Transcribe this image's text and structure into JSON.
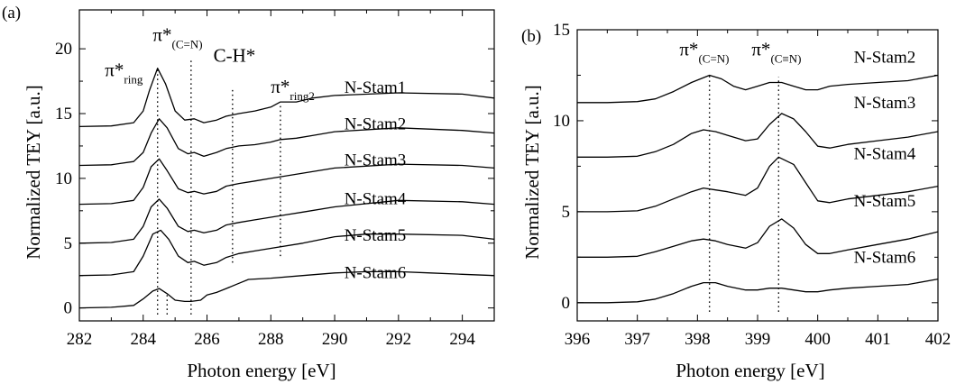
{
  "chart_data": [
    {
      "panel": "(a)",
      "type": "line",
      "title": "",
      "xlabel": "Photon energy [eV]",
      "ylabel": "Normalized TEY [a.u.]",
      "xlim": [
        282,
        295
      ],
      "ylim": [
        -1,
        23
      ],
      "xticks": [
        282,
        284,
        286,
        288,
        290,
        292,
        294
      ],
      "yticks": [
        0,
        5,
        10,
        15,
        20
      ],
      "legend": "none",
      "grid": false,
      "series": [
        {
          "name": "N-Stam1",
          "label_at": [
            290.3,
            16.6
          ],
          "x": [
            282,
            283,
            283.7,
            284.0,
            284.2,
            284.45,
            284.7,
            285.0,
            285.3,
            285.6,
            285.9,
            286.3,
            286.6,
            287.0,
            287.5,
            288.0,
            288.3,
            288.8,
            289.3,
            290,
            292,
            294,
            295
          ],
          "y": [
            14.0,
            14.05,
            14.3,
            15.2,
            16.8,
            18.5,
            17.3,
            15.2,
            14.5,
            14.6,
            14.3,
            14.5,
            14.8,
            15.0,
            15.2,
            15.5,
            15.9,
            15.9,
            16.2,
            16.4,
            16.6,
            16.5,
            16.2
          ]
        },
        {
          "name": "N-Stam2",
          "label_at": [
            290.3,
            13.8
          ],
          "x": [
            282,
            283,
            283.7,
            284.0,
            284.25,
            284.5,
            284.75,
            285.1,
            285.4,
            285.6,
            285.9,
            286.3,
            286.6,
            287.0,
            287.5,
            288.0,
            288.3,
            288.8,
            289.3,
            290,
            292,
            294,
            295
          ],
          "y": [
            11.0,
            11.05,
            11.3,
            12.0,
            13.5,
            14.6,
            13.9,
            12.3,
            11.9,
            12.0,
            11.7,
            12.0,
            12.3,
            12.5,
            12.6,
            12.8,
            13.0,
            13.1,
            13.3,
            13.6,
            13.9,
            13.7,
            13.5
          ]
        },
        {
          "name": "N-Stam3",
          "label_at": [
            290.3,
            11.0
          ],
          "x": [
            282,
            283,
            283.7,
            284.0,
            284.25,
            284.5,
            284.75,
            285.1,
            285.4,
            285.6,
            285.9,
            286.3,
            286.6,
            287.0,
            287.5,
            288.0,
            288.5,
            289.0,
            290,
            292,
            294,
            295
          ],
          "y": [
            8.0,
            8.05,
            8.3,
            9.3,
            10.9,
            11.5,
            10.6,
            9.2,
            8.9,
            9.0,
            8.8,
            9.0,
            9.4,
            9.6,
            9.8,
            10.0,
            10.2,
            10.4,
            10.8,
            11.1,
            11.0,
            10.8
          ]
        },
        {
          "name": "N-Stam4",
          "label_at": [
            290.3,
            8.0
          ],
          "x": [
            282,
            283,
            283.7,
            284.0,
            284.25,
            284.5,
            284.75,
            285.1,
            285.4,
            285.6,
            285.9,
            286.3,
            286.6,
            287.0,
            287.5,
            288.0,
            288.5,
            289.0,
            290,
            292,
            294,
            295
          ],
          "y": [
            5.0,
            5.05,
            5.3,
            6.3,
            7.8,
            8.4,
            7.7,
            6.3,
            5.9,
            6.0,
            5.8,
            6.0,
            6.4,
            6.6,
            6.8,
            7.0,
            7.2,
            7.4,
            7.8,
            8.3,
            8.2,
            8.0
          ]
        },
        {
          "name": "N-Stam5",
          "label_at": [
            290.3,
            5.2
          ],
          "x": [
            282,
            283,
            283.7,
            284.0,
            284.3,
            284.55,
            284.8,
            285.1,
            285.4,
            285.6,
            285.9,
            286.3,
            286.6,
            287.0,
            287.5,
            288.0,
            289.0,
            290,
            291,
            292,
            294,
            295
          ],
          "y": [
            2.5,
            2.55,
            2.8,
            4.0,
            5.7,
            6.0,
            5.3,
            4.0,
            3.5,
            3.6,
            3.3,
            3.5,
            3.9,
            4.2,
            4.4,
            4.6,
            5.0,
            5.5,
            5.7,
            5.7,
            5.6,
            5.3
          ]
        },
        {
          "name": "N-Stam6",
          "label_at": [
            290.3,
            2.3
          ],
          "x": [
            282,
            283,
            283.7,
            284.0,
            284.3,
            284.5,
            284.75,
            285.0,
            285.3,
            285.5,
            285.8,
            286.0,
            286.3,
            286.6,
            287.0,
            287.3,
            288.0,
            289.0,
            290,
            291,
            292,
            293,
            294,
            295
          ],
          "y": [
            0.0,
            0.05,
            0.2,
            0.7,
            1.3,
            1.5,
            1.1,
            0.6,
            0.5,
            0.5,
            0.6,
            1.0,
            1.2,
            1.5,
            1.9,
            2.2,
            2.3,
            2.5,
            2.7,
            2.8,
            2.8,
            2.7,
            2.6,
            2.5
          ]
        }
      ],
      "markers": [
        {
          "id": "pi-ring",
          "x": 284.45,
          "y": [
            -0.5,
            18.5
          ]
        },
        {
          "id": "pi-cn",
          "x": 285.5,
          "y": [
            -0.5,
            19.2
          ]
        },
        {
          "id": "ch",
          "x": 286.8,
          "y": [
            3.5,
            17.0
          ]
        },
        {
          "id": "pi-ring2",
          "x": 288.3,
          "y": [
            4.0,
            15.8
          ]
        },
        {
          "id": "pi-ring-6",
          "x": 284.75,
          "y": [
            -0.5,
            1.2
          ]
        }
      ],
      "annotations": [
        {
          "id": "pi-ring",
          "main": "π*",
          "sub": "ring",
          "x": 282.8,
          "y": 17.9
        },
        {
          "id": "pi-cn",
          "main": "π*",
          "sub": "(C=N)",
          "x": 284.3,
          "y": 20.6
        },
        {
          "id": "ch",
          "main": "C-H*",
          "sub": "",
          "x": 286.2,
          "y": 19.0
        },
        {
          "id": "pi-ring2",
          "main": "π*",
          "sub": "ring2",
          "x": 288.0,
          "y": 16.6
        }
      ]
    },
    {
      "panel": "(b)",
      "type": "line",
      "title": "",
      "xlabel": "Photon energy [eV]",
      "ylabel": "Normalized TEY [a.u.]",
      "xlim": [
        396,
        402
      ],
      "ylim": [
        -1,
        15
      ],
      "xticks": [
        396,
        397,
        398,
        399,
        400,
        401,
        402
      ],
      "yticks": [
        0,
        5,
        10,
        15
      ],
      "legend": "none",
      "grid": false,
      "series": [
        {
          "name": "N-Stam2",
          "label_at": [
            400.6,
            13.2
          ],
          "x": [
            396,
            396.5,
            397,
            397.3,
            397.6,
            397.9,
            398.2,
            398.4,
            398.6,
            398.8,
            399.0,
            399.2,
            399.4,
            399.6,
            399.8,
            400.0,
            400.2,
            400.5,
            401,
            401.5,
            402
          ],
          "y": [
            11.0,
            11.0,
            11.05,
            11.2,
            11.6,
            12.1,
            12.5,
            12.3,
            11.9,
            11.7,
            11.9,
            12.1,
            12.1,
            11.9,
            11.7,
            11.7,
            11.9,
            12.0,
            12.1,
            12.2,
            12.5
          ]
        },
        {
          "name": "N-Stam3",
          "label_at": [
            400.6,
            10.7
          ],
          "x": [
            396,
            396.5,
            397,
            397.3,
            397.6,
            397.9,
            398.1,
            398.3,
            398.5,
            398.8,
            399.0,
            399.2,
            399.4,
            399.6,
            399.8,
            400.0,
            400.2,
            400.5,
            401,
            401.5,
            402
          ],
          "y": [
            8.0,
            8.0,
            8.05,
            8.3,
            8.7,
            9.3,
            9.5,
            9.4,
            9.2,
            8.9,
            9.0,
            9.8,
            10.4,
            10.1,
            9.4,
            8.6,
            8.5,
            8.7,
            8.9,
            9.1,
            9.4
          ]
        },
        {
          "name": "N-Stam4",
          "label_at": [
            400.6,
            7.9
          ],
          "x": [
            396,
            396.5,
            397,
            397.3,
            397.6,
            397.9,
            398.1,
            398.3,
            398.5,
            398.8,
            399.0,
            399.2,
            399.35,
            399.6,
            399.8,
            400.0,
            400.2,
            400.5,
            401,
            401.5,
            402
          ],
          "y": [
            5.0,
            5.0,
            5.05,
            5.3,
            5.7,
            6.1,
            6.3,
            6.2,
            6.1,
            5.9,
            6.3,
            7.5,
            8.0,
            7.6,
            6.6,
            5.6,
            5.5,
            5.7,
            5.9,
            6.1,
            6.4
          ]
        },
        {
          "name": "N-Stam5",
          "label_at": [
            400.6,
            5.3
          ],
          "x": [
            396,
            396.5,
            397,
            397.3,
            397.6,
            397.9,
            398.1,
            398.3,
            398.5,
            398.8,
            399.0,
            399.2,
            399.4,
            399.6,
            399.8,
            400.0,
            400.2,
            400.5,
            401,
            401.5,
            402
          ],
          "y": [
            2.5,
            2.5,
            2.55,
            2.8,
            3.1,
            3.4,
            3.5,
            3.4,
            3.2,
            3.0,
            3.3,
            4.2,
            4.6,
            4.1,
            3.2,
            2.7,
            2.7,
            2.9,
            3.2,
            3.5,
            3.9
          ]
        },
        {
          "name": "N-Stam6",
          "label_at": [
            400.6,
            2.2
          ],
          "x": [
            396,
            396.5,
            397,
            397.3,
            397.6,
            397.9,
            398.1,
            398.3,
            398.5,
            398.8,
            399.0,
            399.2,
            399.4,
            399.6,
            399.8,
            400.0,
            400.2,
            400.5,
            401,
            401.5,
            402
          ],
          "y": [
            0.0,
            0.0,
            0.05,
            0.2,
            0.5,
            0.9,
            1.1,
            1.1,
            0.9,
            0.7,
            0.7,
            0.8,
            0.8,
            0.7,
            0.6,
            0.6,
            0.7,
            0.8,
            0.9,
            1.0,
            1.3
          ]
        }
      ],
      "markers": [
        {
          "id": "pi-cn",
          "x": 398.2,
          "y": [
            -0.5,
            12.6
          ]
        },
        {
          "id": "pi-cnt",
          "x": 399.35,
          "y": [
            -0.5,
            12.4
          ]
        }
      ],
      "annotations": [
        {
          "id": "pi-cn",
          "main": "π*",
          "sub": "(C=N)",
          "x": 397.7,
          "y": 13.6
        },
        {
          "id": "pi-cnt",
          "main": "π*",
          "sub": "(C≡N)",
          "x": 398.9,
          "y": 13.6
        }
      ]
    }
  ]
}
